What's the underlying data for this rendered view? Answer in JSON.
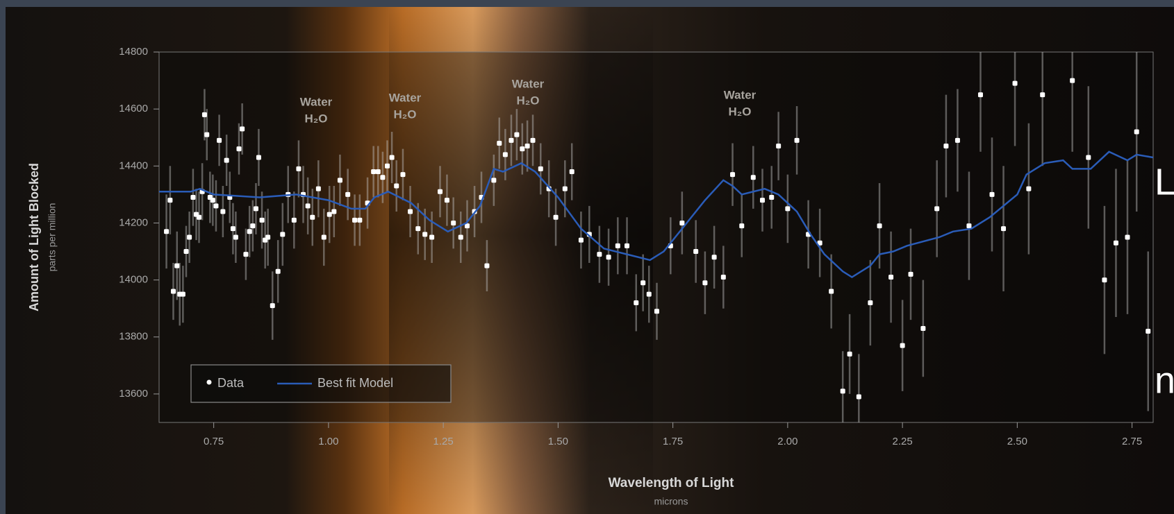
{
  "chart_data": {
    "type": "scatter",
    "y_label": "Amount of Light Blocked",
    "y_sublabel": "parts per million",
    "x_label": "Wavelength of Light",
    "x_sublabel": "microns",
    "xlim": [
      0.631,
      2.796
    ],
    "ylim": [
      13500,
      14800
    ],
    "xticks": [
      0.75,
      {
        "value": 1,
        "label": "1.00"
      },
      1.25,
      {
        "value": 1.5,
        "label": "1.50"
      },
      1.75,
      {
        "value": 2,
        "label": "2.00"
      },
      2.25,
      {
        "value": 2.5,
        "label": "2.50"
      },
      2.75
    ],
    "yticks": [
      13600,
      13800,
      14000,
      14200,
      14400,
      14600,
      14800
    ],
    "grid": false,
    "legend": "lower left",
    "annotations": [
      [
        "Water",
        "H₂O"
      ],
      [
        "Water",
        "H₂O"
      ],
      [
        "Water",
        "H₂O"
      ],
      [
        "Water",
        "H₂O"
      ]
    ],
    "series": [
      {
        "name": "Data",
        "color": "#ffffff",
        "type": "scatter",
        "x": [
          0.647,
          0.655,
          0.662,
          0.67,
          0.676,
          0.683,
          0.69,
          0.697,
          0.705,
          0.712,
          0.718,
          0.725,
          0.73,
          0.735,
          0.742,
          0.748,
          0.755,
          0.762,
          0.77,
          0.778,
          0.785,
          0.792,
          0.798,
          0.805,
          0.812,
          0.82,
          0.828,
          0.835,
          0.842,
          0.848,
          0.855,
          0.862,
          0.868,
          0.878,
          0.89,
          0.9,
          0.912,
          0.925,
          0.935,
          0.945,
          0.955,
          0.965,
          0.978,
          0.99,
          1.002,
          1.012,
          1.025,
          1.042,
          1.057,
          1.068,
          1.085,
          1.098,
          1.108,
          1.118,
          1.128,
          1.138,
          1.148,
          1.162,
          1.178,
          1.195,
          1.21,
          1.225,
          1.243,
          1.258,
          1.272,
          1.288,
          1.302,
          1.318,
          1.333,
          1.345,
          1.36,
          1.372,
          1.385,
          1.398,
          1.41,
          1.422,
          1.433,
          1.445,
          1.462,
          1.48,
          1.495,
          1.515,
          1.53,
          1.55,
          1.568,
          1.59,
          1.61,
          1.63,
          1.65,
          1.67,
          1.685,
          1.698,
          1.715,
          1.745,
          1.77,
          1.8,
          1.82,
          1.84,
          1.86,
          1.88,
          1.9,
          1.925,
          1.945,
          1.965,
          1.98,
          2.0,
          2.02,
          2.045,
          2.07,
          2.095,
          2.12,
          2.135,
          2.155,
          2.18,
          2.2,
          2.225,
          2.25,
          2.268,
          2.295,
          2.325,
          2.345,
          2.37,
          2.395,
          2.42,
          2.445,
          2.47,
          2.495,
          2.525,
          2.555,
          2.62,
          2.655,
          2.69,
          2.715,
          2.74,
          2.76,
          2.785
        ],
        "values": [
          14170,
          14280,
          13960,
          14050,
          13950,
          13950,
          14100,
          14150,
          14290,
          14230,
          14220,
          14310,
          14580,
          14510,
          14290,
          14280,
          14260,
          14490,
          14240,
          14420,
          14290,
          14180,
          14150,
          14460,
          14530,
          14090,
          14170,
          14190,
          14250,
          14430,
          14210,
          14140,
          14150,
          13910,
          14030,
          14160,
          14300,
          14210,
          14390,
          14300,
          14260,
          14220,
          14320,
          14150,
          14230,
          14240,
          14350,
          14300,
          14210,
          14210,
          14270,
          14380,
          14380,
          14360,
          14400,
          14430,
          14330,
          14370,
          14240,
          14180,
          14160,
          14150,
          14310,
          14280,
          14200,
          14150,
          14190,
          14240,
          14290,
          14050,
          14350,
          14480,
          14440,
          14490,
          14510,
          14460,
          14470,
          14490,
          14390,
          14320,
          14220,
          14320,
          14380,
          14140,
          14160,
          14090,
          14080,
          14120,
          14120,
          13920,
          13990,
          13950,
          13890,
          14120,
          14200,
          14100,
          13990,
          14080,
          14010,
          14370,
          14190,
          14360,
          14280,
          14290,
          14470,
          14250,
          14490,
          14160,
          14130,
          13960,
          13610,
          13740,
          13590,
          13920,
          14190,
          14010,
          13770,
          14020,
          13830,
          14250,
          14470,
          14490,
          14190,
          14650,
          14300,
          14180,
          14690,
          14320,
          14650,
          14700,
          14430,
          14000,
          14130,
          14150,
          14520,
          13820
        ],
        "errors": [
          130,
          120,
          100,
          120,
          110,
          100,
          90,
          90,
          100,
          90,
          90,
          100,
          90,
          90,
          90,
          90,
          90,
          90,
          90,
          90,
          90,
          90,
          90,
          90,
          90,
          90,
          90,
          90,
          90,
          100,
          100,
          100,
          100,
          120,
          110,
          110,
          100,
          100,
          100,
          100,
          100,
          100,
          100,
          100,
          100,
          90,
          90,
          90,
          90,
          90,
          90,
          90,
          90,
          90,
          90,
          90,
          90,
          90,
          90,
          90,
          90,
          90,
          90,
          90,
          90,
          90,
          90,
          90,
          90,
          90,
          90,
          90,
          90,
          90,
          90,
          90,
          90,
          90,
          90,
          100,
          100,
          100,
          100,
          100,
          100,
          100,
          100,
          100,
          100,
          100,
          100,
          100,
          100,
          100,
          110,
          110,
          110,
          110,
          110,
          110,
          110,
          110,
          110,
          110,
          120,
          120,
          120,
          120,
          120,
          130,
          140,
          140,
          150,
          150,
          150,
          160,
          160,
          160,
          170,
          170,
          180,
          180,
          190,
          200,
          200,
          220,
          220,
          230,
          250,
          250,
          250,
          260,
          260,
          270,
          280,
          280
        ]
      },
      {
        "name": "Best fit Model",
        "color": "#2a5cb8",
        "type": "line",
        "x": [
          0.631,
          0.7,
          0.72,
          0.75,
          0.85,
          0.93,
          1.0,
          1.05,
          1.08,
          1.1,
          1.13,
          1.18,
          1.22,
          1.26,
          1.3,
          1.33,
          1.36,
          1.38,
          1.42,
          1.45,
          1.5,
          1.55,
          1.6,
          1.65,
          1.7,
          1.73,
          1.78,
          1.82,
          1.86,
          1.88,
          1.9,
          1.95,
          1.98,
          2.02,
          2.05,
          2.08,
          2.12,
          2.14,
          2.18,
          2.2,
          2.23,
          2.26,
          2.33,
          2.36,
          2.4,
          2.44,
          2.5,
          2.52,
          2.56,
          2.6,
          2.62,
          2.66,
          2.7,
          2.74,
          2.76,
          2.796
        ],
        "values": [
          14310,
          14310,
          14320,
          14300,
          14290,
          14300,
          14280,
          14250,
          14250,
          14290,
          14310,
          14270,
          14210,
          14170,
          14200,
          14260,
          14390,
          14380,
          14410,
          14380,
          14290,
          14180,
          14110,
          14090,
          14070,
          14100,
          14200,
          14280,
          14350,
          14330,
          14300,
          14320,
          14300,
          14240,
          14160,
          14090,
          14030,
          14010,
          14050,
          14090,
          14100,
          14120,
          14150,
          14170,
          14180,
          14220,
          14300,
          14370,
          14410,
          14420,
          14390,
          14390,
          14450,
          14420,
          14440,
          14430
        ]
      }
    ]
  },
  "slide_text": [
    "L",
    "n"
  ]
}
